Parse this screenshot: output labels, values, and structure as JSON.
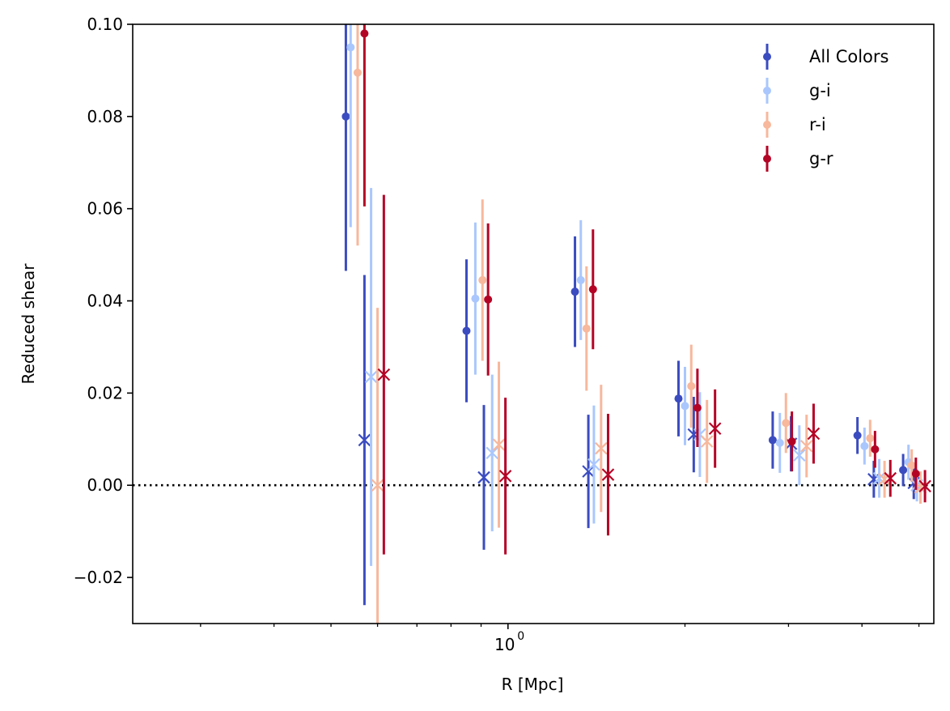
{
  "chart_data": {
    "type": "scatter",
    "title": "",
    "xlabel": "R [Mpc]",
    "ylabel": "Reduced shear",
    "xscale": "log",
    "xlim": [
      0.23,
      5.3
    ],
    "ylim": [
      -0.03,
      0.1
    ],
    "y_ticks": [
      "−0.02",
      "0.00",
      "0.02",
      "0.04",
      "0.06",
      "0.08",
      "0.10"
    ],
    "y_tick_values": [
      -0.02,
      0.0,
      0.02,
      0.04,
      0.06,
      0.08,
      0.1
    ],
    "x_major_tick": {
      "value": 1.0,
      "label_base": "10",
      "label_exp": "0"
    },
    "reference_line": {
      "y": 0.0,
      "style": "dotted",
      "color": "#000000"
    },
    "legend": {
      "placement": "top-right"
    },
    "marker_note": "circles = tangential shear, x = cross shear",
    "series": [
      {
        "name": "All Colors",
        "color": "#3b4cc0",
        "tangential": [
          {
            "x": 0.53,
            "y": 0.08,
            "err": 0.0335
          },
          {
            "x": 0.85,
            "y": 0.0335,
            "err": 0.0155
          },
          {
            "x": 1.3,
            "y": 0.042,
            "err": 0.012
          },
          {
            "x": 1.95,
            "y": 0.0188,
            "err": 0.0082
          },
          {
            "x": 2.82,
            "y": 0.0098,
            "err": 0.0062
          },
          {
            "x": 3.93,
            "y": 0.0108,
            "err": 0.004
          },
          {
            "x": 4.7,
            "y": 0.0033,
            "err": 0.0035
          }
        ],
        "cross": [
          {
            "x": 0.57,
            "y": 0.0098,
            "err": 0.0358
          },
          {
            "x": 0.91,
            "y": 0.0017,
            "err": 0.0157
          },
          {
            "x": 1.37,
            "y": 0.003,
            "err": 0.0123
          },
          {
            "x": 2.07,
            "y": 0.011,
            "err": 0.0082
          },
          {
            "x": 3.03,
            "y": 0.009,
            "err": 0.006
          },
          {
            "x": 4.19,
            "y": 0.0013,
            "err": 0.004
          },
          {
            "x": 4.9,
            "y": 0.0005,
            "err": 0.0035
          }
        ]
      },
      {
        "name": "g-i",
        "color": "#aac7fd",
        "tangential": [
          {
            "x": 0.54,
            "y": 0.095,
            "err": 0.039
          },
          {
            "x": 0.88,
            "y": 0.0405,
            "err": 0.0165
          },
          {
            "x": 1.33,
            "y": 0.0445,
            "err": 0.013
          },
          {
            "x": 2.0,
            "y": 0.0172,
            "err": 0.0085
          },
          {
            "x": 2.9,
            "y": 0.0092,
            "err": 0.0065
          },
          {
            "x": 4.04,
            "y": 0.0085,
            "err": 0.004
          },
          {
            "x": 4.8,
            "y": 0.005,
            "err": 0.0038
          }
        ],
        "cross": [
          {
            "x": 0.585,
            "y": 0.0235,
            "err": 0.041
          },
          {
            "x": 0.94,
            "y": 0.007,
            "err": 0.017
          },
          {
            "x": 1.4,
            "y": 0.0045,
            "err": 0.0128
          },
          {
            "x": 2.12,
            "y": 0.011,
            "err": 0.0092
          },
          {
            "x": 3.13,
            "y": 0.0065,
            "err": 0.0065
          },
          {
            "x": 4.28,
            "y": 0.0015,
            "err": 0.0042
          },
          {
            "x": 4.96,
            "y": 0.0,
            "err": 0.0035
          }
        ]
      },
      {
        "name": "r-i",
        "color": "#f7b89c",
        "tangential": [
          {
            "x": 0.555,
            "y": 0.0895,
            "err": 0.0375
          },
          {
            "x": 0.905,
            "y": 0.0445,
            "err": 0.0175
          },
          {
            "x": 1.36,
            "y": 0.034,
            "err": 0.0135
          },
          {
            "x": 2.05,
            "y": 0.0215,
            "err": 0.009
          },
          {
            "x": 2.97,
            "y": 0.0135,
            "err": 0.0065
          },
          {
            "x": 4.13,
            "y": 0.0102,
            "err": 0.004
          },
          {
            "x": 4.86,
            "y": 0.0043,
            "err": 0.0035
          }
        ],
        "cross": [
          {
            "x": 0.6,
            "y": 0.0,
            "err": 0.0385
          },
          {
            "x": 0.965,
            "y": 0.0088,
            "err": 0.018
          },
          {
            "x": 1.44,
            "y": 0.008,
            "err": 0.0138
          },
          {
            "x": 2.18,
            "y": 0.0095,
            "err": 0.009
          },
          {
            "x": 3.22,
            "y": 0.0085,
            "err": 0.0068
          },
          {
            "x": 4.37,
            "y": 0.0013,
            "err": 0.004
          },
          {
            "x": 5.03,
            "y": -0.0005,
            "err": 0.0035
          }
        ]
      },
      {
        "name": "g-r",
        "color": "#b40426",
        "tangential": [
          {
            "x": 0.57,
            "y": 0.098,
            "err": 0.0375
          },
          {
            "x": 0.925,
            "y": 0.0403,
            "err": 0.0165
          },
          {
            "x": 1.395,
            "y": 0.0425,
            "err": 0.013
          },
          {
            "x": 2.1,
            "y": 0.0168,
            "err": 0.0085
          },
          {
            "x": 3.04,
            "y": 0.0095,
            "err": 0.0065
          },
          {
            "x": 4.21,
            "y": 0.0078,
            "err": 0.004
          },
          {
            "x": 4.94,
            "y": 0.0025,
            "err": 0.0035
          }
        ],
        "cross": [
          {
            "x": 0.615,
            "y": 0.024,
            "err": 0.039
          },
          {
            "x": 0.99,
            "y": 0.002,
            "err": 0.017
          },
          {
            "x": 1.48,
            "y": 0.0023,
            "err": 0.0132
          },
          {
            "x": 2.25,
            "y": 0.0123,
            "err": 0.0085
          },
          {
            "x": 3.31,
            "y": 0.0112,
            "err": 0.0065
          },
          {
            "x": 4.47,
            "y": 0.0015,
            "err": 0.004
          },
          {
            "x": 5.12,
            "y": -0.0002,
            "err": 0.0035
          }
        ]
      }
    ]
  }
}
